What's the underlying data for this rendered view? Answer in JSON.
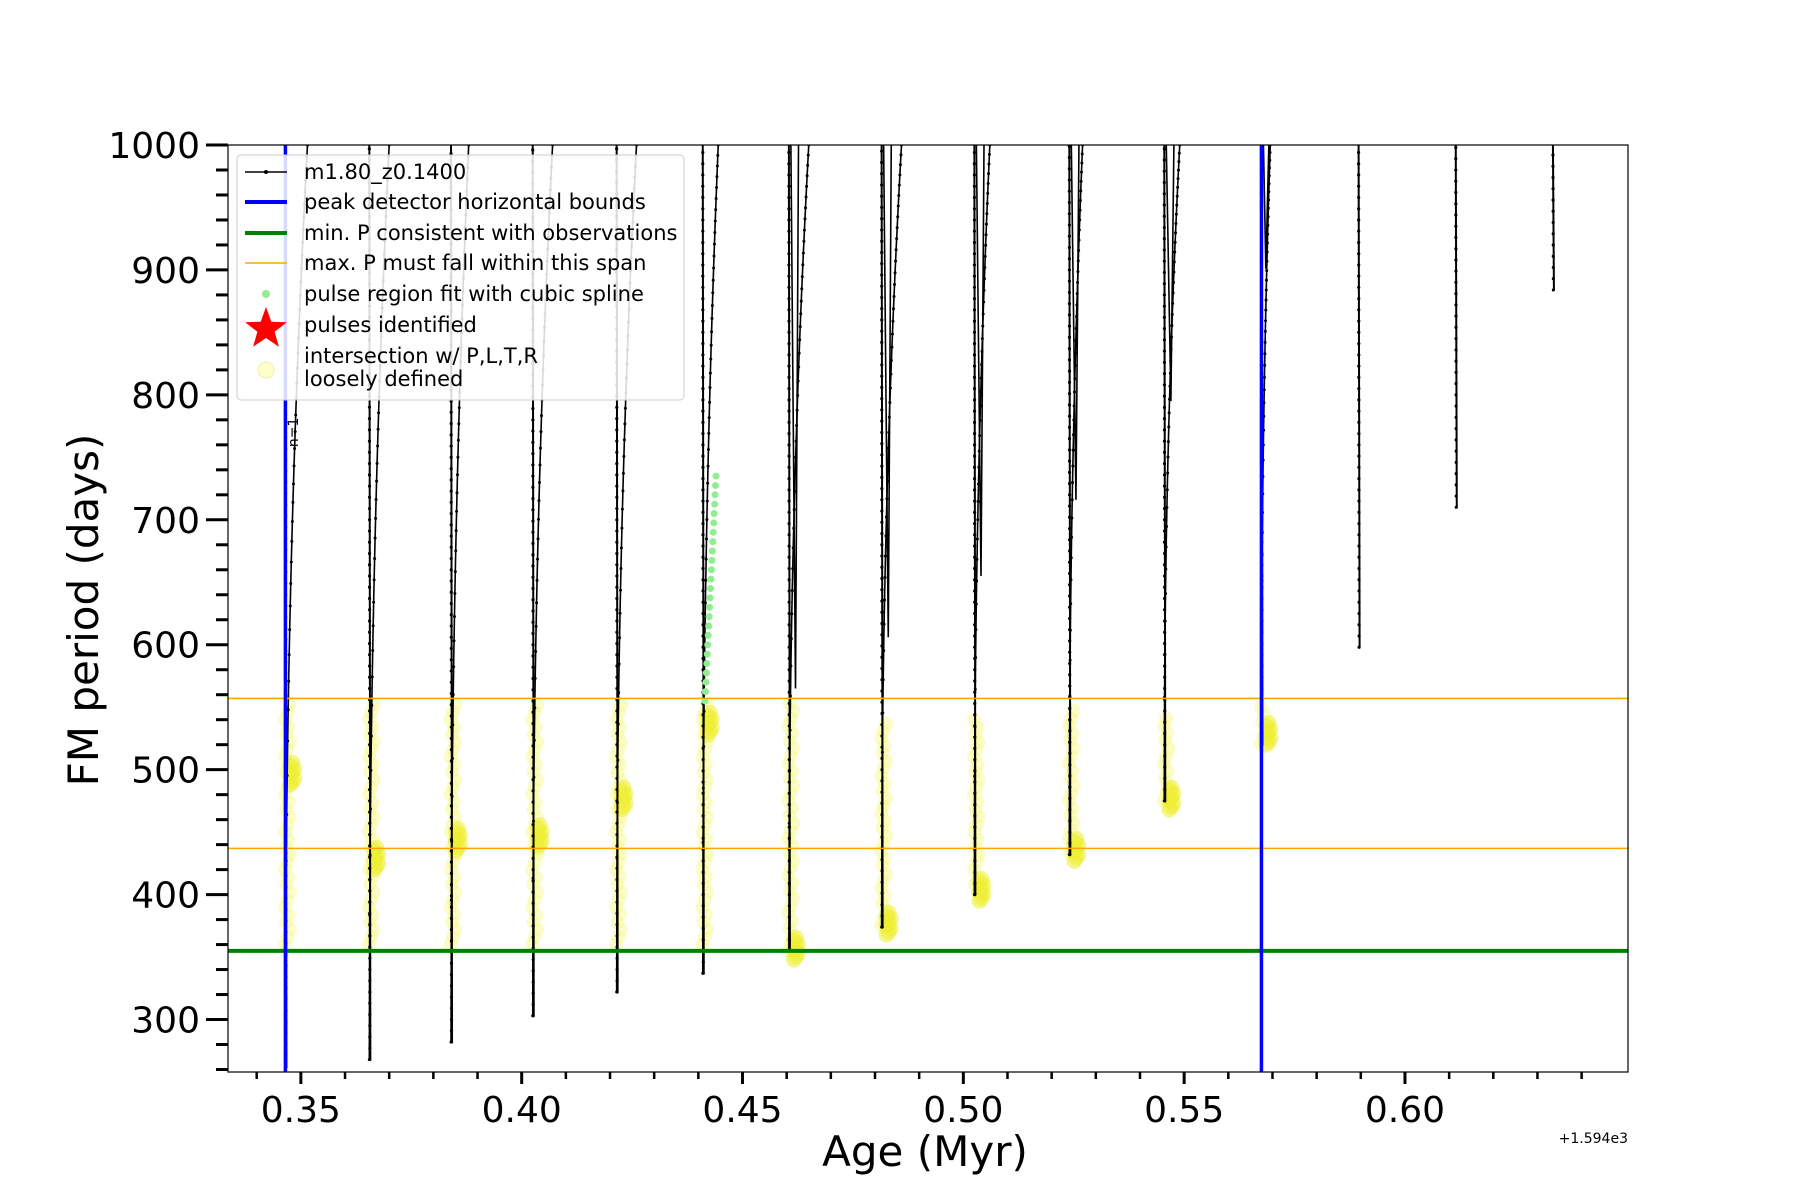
{
  "chart_data": {
    "type": "line",
    "xlabel": "Age (Myr)",
    "ylabel": "FM period (days)",
    "offset_text": "+1.594e3",
    "xlim": [
      0.3335,
      0.6505
    ],
    "ylim": [
      258,
      1000
    ],
    "xticks": [
      0.35,
      0.4,
      0.45,
      0.5,
      0.55,
      0.6
    ],
    "xtick_labels": [
      "0.35",
      "0.40",
      "0.45",
      "0.50",
      "0.55",
      "0.60"
    ],
    "yticks": [
      300,
      400,
      500,
      600,
      700,
      800,
      900,
      1000
    ],
    "ytick_labels": [
      "300",
      "400",
      "500",
      "600",
      "700",
      "800",
      "900",
      "1000"
    ],
    "grid": false,
    "legend_position": "upper-left",
    "legend": [
      {
        "label": "m1.80_z0.1400",
        "kind": "line-marker",
        "color": "#000000"
      },
      {
        "label": "peak detector horizontal bounds",
        "kind": "line",
        "color": "#0000ff"
      },
      {
        "label": "min. P consistent with observations",
        "kind": "line",
        "color": "#008000"
      },
      {
        "label": "max. P must fall within this span",
        "kind": "line",
        "color": "#ffa500"
      },
      {
        "label": "pulse region fit with cubic spline",
        "kind": "dot",
        "color": "#90ee90"
      },
      {
        "label": "pulses identified",
        "kind": "star",
        "color": "#ff0000"
      },
      {
        "label": "intersection w/ P,L,T,R",
        "label2": "loosely defined",
        "kind": "circle",
        "color": "#ffffcc"
      }
    ],
    "annotation": {
      "text": "n=1",
      "x": 0.3475,
      "y": 770
    },
    "vlines": [
      {
        "x": 0.3465,
        "color": "#0000ff"
      },
      {
        "x": 0.5675,
        "color": "#0000ff"
      }
    ],
    "hlines": [
      {
        "y": 355,
        "color": "#008000",
        "role": "min"
      },
      {
        "y": 557,
        "color": "#ffa500",
        "role": "max-upper"
      },
      {
        "y": 437,
        "color": "#ffa500",
        "role": "max-lower"
      }
    ],
    "pulses": [
      {
        "x": 0.3465,
        "min": 262,
        "top": 1000,
        "rise_end": 0.3515,
        "yellow": [
          360,
          555
        ],
        "cluster": 498
      },
      {
        "x": 0.3655,
        "min": 268,
        "top": 1000,
        "rise_end": 0.37,
        "yellow": [
          360,
          555
        ],
        "cluster": 430
      },
      {
        "x": 0.384,
        "min": 282,
        "top": 1000,
        "rise_end": 0.388,
        "yellow": [
          360,
          555
        ],
        "cluster": 445
      },
      {
        "x": 0.4025,
        "min": 303,
        "top": 1000,
        "rise_end": 0.407,
        "yellow": [
          360,
          555
        ],
        "cluster": 448
      },
      {
        "x": 0.4215,
        "min": 322,
        "top": 1000,
        "rise_end": 0.426,
        "yellow": [
          360,
          555
        ],
        "cluster": 478
      },
      {
        "x": 0.441,
        "min": 337,
        "top": 1000,
        "rise_end": 0.4445,
        "yellow": [
          360,
          555
        ],
        "cluster": 538
      },
      {
        "x": 0.4605,
        "min": 355,
        "top": 1000,
        "rise_end": 0.465,
        "yellow": [
          355,
          555
        ],
        "cluster": 358,
        "sub": [
          0.462,
          565
        ]
      },
      {
        "x": 0.4815,
        "min": 374,
        "top": 1000,
        "rise_end": 0.486,
        "yellow": [
          375,
          540
        ],
        "cluster": 378,
        "sub": [
          0.483,
          606
        ]
      },
      {
        "x": 0.5025,
        "min": 400,
        "top": 1000,
        "rise_end": 0.506,
        "yellow": [
          402,
          545
        ],
        "cluster": 405,
        "sub": [
          0.504,
          655
        ]
      },
      {
        "x": 0.524,
        "min": 432,
        "top": 1000,
        "rise_end": 0.527,
        "yellow": [
          433,
          550
        ],
        "cluster": 437,
        "sub": [
          0.5255,
          716
        ]
      },
      {
        "x": 0.5455,
        "min": 475,
        "top": 1000,
        "rise_end": 0.549,
        "yellow": [
          475,
          545
        ],
        "cluster": 478,
        "sub": [
          0.547,
          795
        ]
      },
      {
        "x": 0.5675,
        "min": 520,
        "top": 1000,
        "rise_end": 0.5695,
        "yellow": [
          520,
          552
        ],
        "cluster": 530,
        "sub": [
          0.5685,
          901
        ]
      },
      {
        "x": 0.5895,
        "min": 598,
        "top": 1000
      },
      {
        "x": 0.6115,
        "min": 710,
        "top": 1000
      },
      {
        "x": 0.6335,
        "min": 884,
        "top": 1000
      }
    ],
    "spline_points": {
      "x": [
        0.4415,
        0.444
      ],
      "y": [
        555,
        735
      ]
    }
  }
}
